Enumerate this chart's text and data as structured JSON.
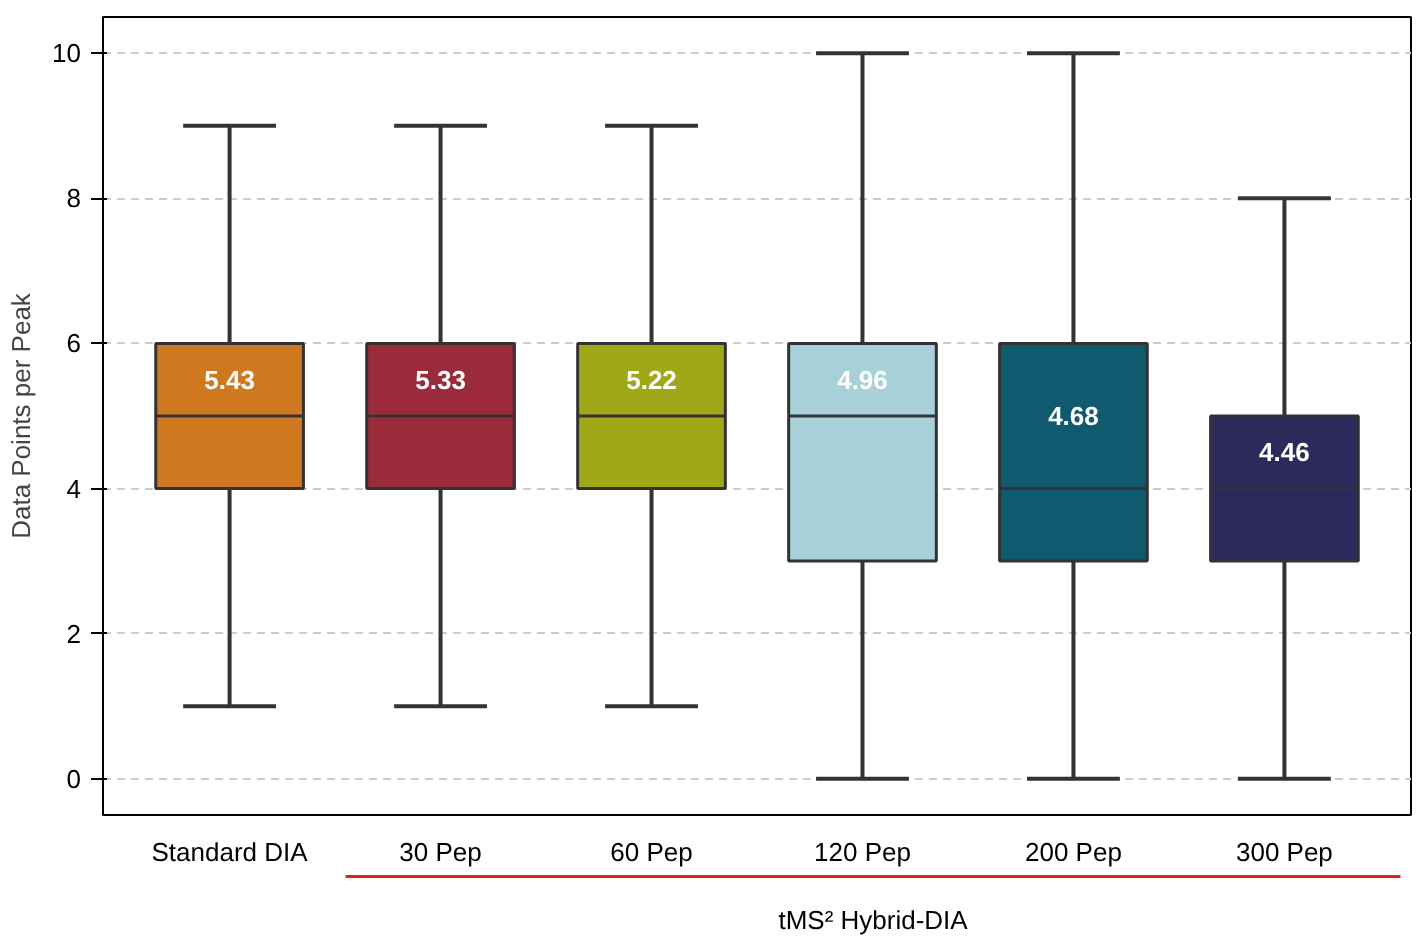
{
  "chart_data": {
    "type": "box",
    "ylabel": "Data Points per Peak",
    "categories": [
      "Standard DIA",
      "30 Pep",
      "60 Pep",
      "120 Pep",
      "200 Pep",
      "300 Pep"
    ],
    "boxes": [
      {
        "low": 1,
        "q1": 4,
        "median": 5,
        "q3": 6,
        "high": 9
      },
      {
        "low": 1,
        "q1": 4,
        "median": 5,
        "q3": 6,
        "high": 9
      },
      {
        "low": 1,
        "q1": 4,
        "median": 5,
        "q3": 6,
        "high": 9
      },
      {
        "low": 0,
        "q1": 3,
        "median": 5,
        "q3": 6,
        "high": 10
      },
      {
        "low": 0,
        "q1": 3,
        "median": 4,
        "q3": 6,
        "high": 10
      },
      {
        "low": 0,
        "q1": 3,
        "median": 4,
        "q3": 5,
        "high": 8
      }
    ],
    "colors": [
      "#d07820",
      "#9b2a3a",
      "#a0a818",
      "#a8d0d8",
      "#0f5a6e",
      "#2c2a5a"
    ],
    "ylim": [
      -0.5,
      10.5
    ],
    "yticks": [
      0,
      2,
      4,
      6,
      8,
      10
    ],
    "grid": "y",
    "annotations": [
      "5.43",
      "5.33",
      "5.22",
      "4.96",
      "4.68",
      "4.46",
      "tMS² Hybrid-DIA"
    ]
  }
}
